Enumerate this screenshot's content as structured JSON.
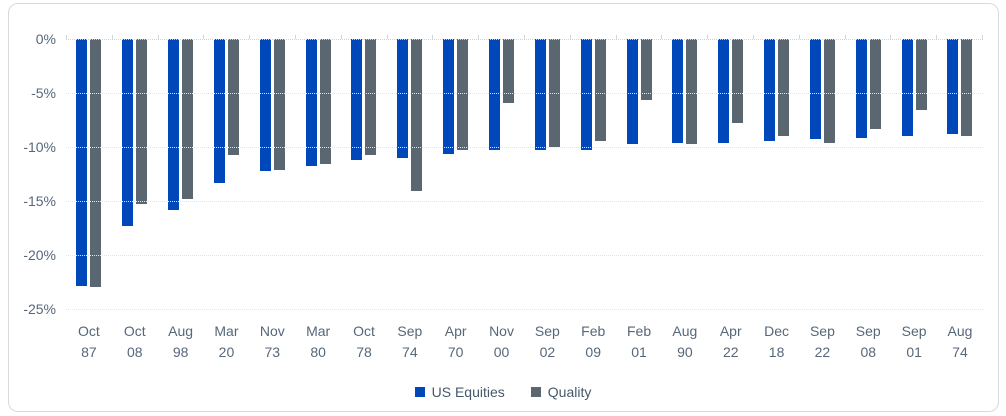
{
  "chart_data": {
    "type": "bar",
    "title": "",
    "categories": [
      "Oct 87",
      "Oct 08",
      "Aug 98",
      "Mar 20",
      "Nov 73",
      "Mar 80",
      "Oct 78",
      "Sep 74",
      "Apr 70",
      "Nov 00",
      "Sep 02",
      "Feb 09",
      "Feb 01",
      "Aug 90",
      "Apr 22",
      "Dec 18",
      "Sep 22",
      "Sep 08",
      "Sep 01",
      "Aug 74"
    ],
    "series": [
      {
        "name": "US Equities",
        "color": "#0047BA",
        "values": [
          -22.9,
          -17.3,
          -15.8,
          -13.3,
          -12.2,
          -11.8,
          -11.2,
          -11.0,
          -10.6,
          -10.3,
          -10.3,
          -10.3,
          -9.7,
          -9.6,
          -9.6,
          -9.4,
          -9.3,
          -9.2,
          -9.0,
          -8.8
        ]
      },
      {
        "name": "Quality",
        "color": "#5B6770",
        "values": [
          -23.0,
          -15.3,
          -14.8,
          -10.7,
          -12.1,
          -11.6,
          -10.7,
          -14.1,
          -10.3,
          -5.9,
          -10.0,
          -9.4,
          -5.6,
          -9.7,
          -7.8,
          -9.0,
          -9.6,
          -8.3,
          -6.6,
          -9.0
        ]
      }
    ],
    "y_ticks": [
      "0%",
      "-5%",
      "-10%",
      "-15%",
      "-20%",
      "-25%"
    ],
    "ylim": [
      -25,
      0
    ],
    "grid": "horizontal-dotted",
    "legend_position": "bottom-center"
  },
  "colors": {
    "us_equities": "#0047BA",
    "quality": "#5B6770",
    "axis_text": "#56677A",
    "gridline": "#E4E4E4",
    "frame_border": "#D9D9D9",
    "background": "#FFFFFF"
  }
}
